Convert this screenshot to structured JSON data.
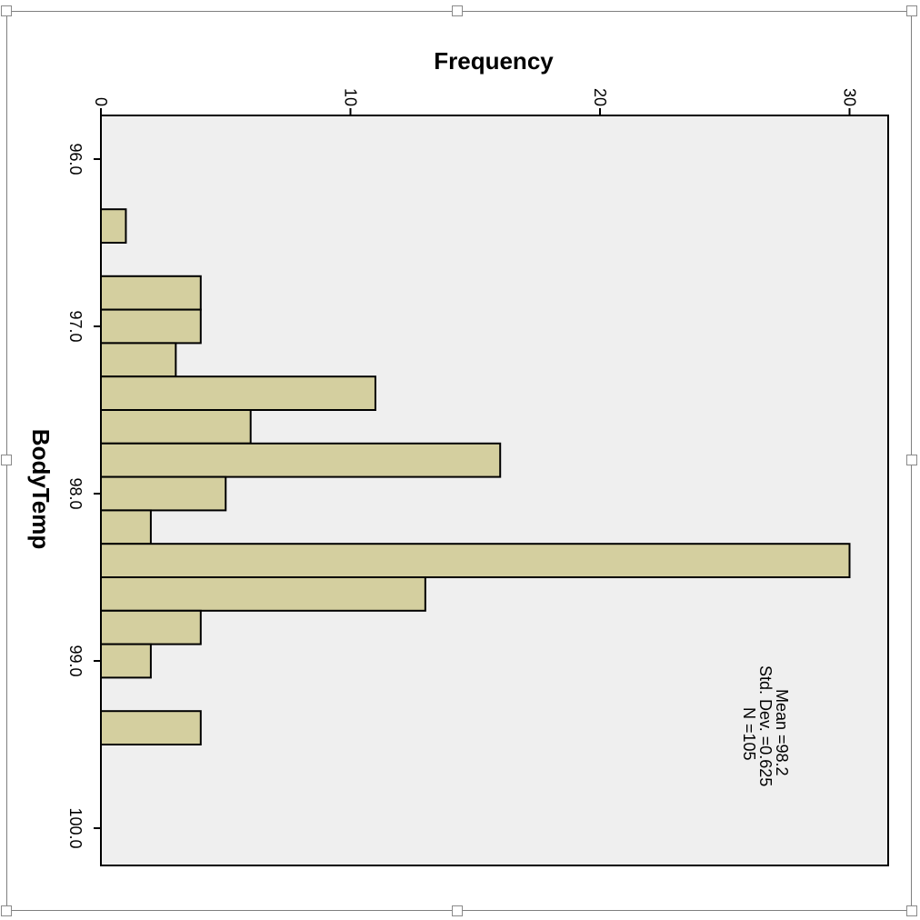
{
  "chart_data": {
    "type": "bar",
    "orientation": "rotated 90deg clockwise (histogram drawn sideways)",
    "xlabel": "BodyTemp",
    "ylabel": "Frequency",
    "xticks": [
      "96.0",
      "97.0",
      "98.0",
      "99.0",
      "100.0"
    ],
    "yticks": [
      "0",
      "10",
      "20",
      "30"
    ],
    "xlim": [
      95.7,
      100.1
    ],
    "ylim": [
      0,
      31.5
    ],
    "bin_width": 0.2,
    "bins": [
      {
        "start": 96.3,
        "end": 96.5,
        "value": 1
      },
      {
        "start": 96.5,
        "end": 96.7,
        "value": 0
      },
      {
        "start": 96.7,
        "end": 96.9,
        "value": 4
      },
      {
        "start": 96.9,
        "end": 97.1,
        "value": 4
      },
      {
        "start": 97.1,
        "end": 97.3,
        "value": 3
      },
      {
        "start": 97.3,
        "end": 97.5,
        "value": 11
      },
      {
        "start": 97.5,
        "end": 97.7,
        "value": 6
      },
      {
        "start": 97.7,
        "end": 97.9,
        "value": 16
      },
      {
        "start": 97.9,
        "end": 98.1,
        "value": 5
      },
      {
        "start": 98.1,
        "end": 98.3,
        "value": 2
      },
      {
        "start": 98.3,
        "end": 98.5,
        "value": 30
      },
      {
        "start": 98.5,
        "end": 98.7,
        "value": 13
      },
      {
        "start": 98.7,
        "end": 98.9,
        "value": 4
      },
      {
        "start": 98.9,
        "end": 99.1,
        "value": 2
      },
      {
        "start": 99.1,
        "end": 99.3,
        "value": 0
      },
      {
        "start": 99.3,
        "end": 99.5,
        "value": 4
      }
    ],
    "stats": [
      "Mean =98.2",
      "Std. Dev. =0.625",
      "N =105"
    ],
    "bar_color": "#d4cf9f",
    "plot_background": "#efefef",
    "grid": false,
    "legend": "none"
  },
  "colors": {
    "bar": "#d4cf9f",
    "plot_bg": "#efefef",
    "outline": "#000000",
    "frame": "#7f7f7f"
  }
}
